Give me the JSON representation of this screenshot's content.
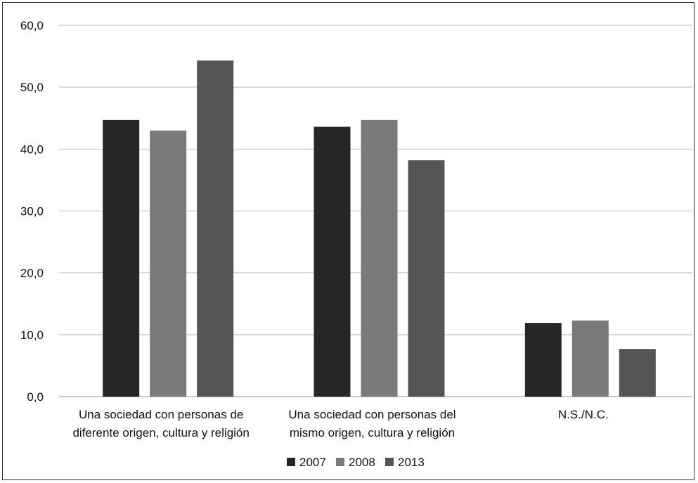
{
  "chart_data": {
    "type": "bar",
    "title": "",
    "xlabel": "",
    "ylabel": "",
    "ylim": [
      0,
      60
    ],
    "yticks": [
      "0,0",
      "10,0",
      "20,0",
      "30,0",
      "40,0",
      "50,0",
      "60,0"
    ],
    "grid": true,
    "legend_position": "bottom",
    "categories": [
      [
        "Una sociedad con personas de",
        "diferente origen, cultura y religión"
      ],
      [
        "Una sociedad con personas del",
        "mismo origen, cultura y religión"
      ],
      [
        "N.S./N.C."
      ]
    ],
    "series": [
      {
        "name": "2007",
        "color": "#262626",
        "values": [
          44.7,
          43.6,
          11.9
        ]
      },
      {
        "name": "2008",
        "color": "#7a7a7a",
        "values": [
          43.0,
          44.7,
          12.3
        ]
      },
      {
        "name": "2013",
        "color": "#555555",
        "values": [
          54.3,
          38.2,
          7.7
        ]
      }
    ]
  }
}
